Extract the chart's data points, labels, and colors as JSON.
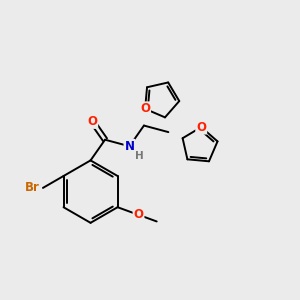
{
  "bg_color": "#ebebeb",
  "bond_color": "#000000",
  "bond_width": 1.4,
  "atom_colors": {
    "O": "#ff2200",
    "N": "#0000cc",
    "Br": "#cc6600",
    "H": "#777777"
  },
  "font_size": 8.5
}
